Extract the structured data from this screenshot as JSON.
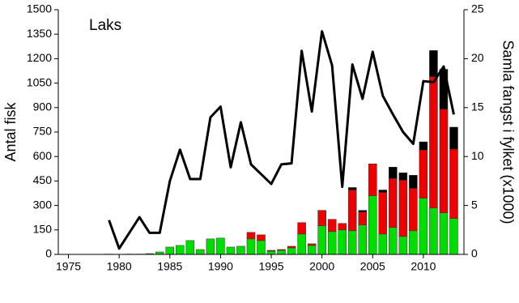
{
  "chart_data": {
    "type": "bar",
    "annotation": "Laks",
    "ylabel": "Antal fisk",
    "y2label": "Samla fangst i fylket (x1000)",
    "x": [
      1979,
      1980,
      1981,
      1982,
      1983,
      1984,
      1985,
      1986,
      1987,
      1988,
      1989,
      1990,
      1991,
      1992,
      1993,
      1994,
      1995,
      1996,
      1997,
      1998,
      1999,
      2000,
      2001,
      2002,
      2003,
      2004,
      2005,
      2006,
      2007,
      2008,
      2009,
      2010,
      2011,
      2012,
      2013
    ],
    "xlim": [
      1974,
      2014
    ],
    "xticks": [
      1975,
      1980,
      1985,
      1990,
      1995,
      2000,
      2005,
      2010
    ],
    "ylim": [
      0,
      1500
    ],
    "yticks": [
      0,
      150,
      300,
      450,
      600,
      750,
      900,
      1050,
      1200,
      1350,
      1500
    ],
    "y2lim": [
      0,
      25
    ],
    "y2ticks": [
      0,
      5,
      10,
      15,
      20,
      25
    ],
    "series": [
      {
        "color": "#00dd00",
        "stack": true,
        "values": [
          2,
          0,
          2,
          2,
          5,
          15,
          45,
          55,
          85,
          30,
          95,
          100,
          45,
          50,
          95,
          85,
          20,
          25,
          40,
          125,
          55,
          175,
          140,
          150,
          145,
          180,
          360,
          125,
          165,
          110,
          145,
          345,
          285,
          255,
          220
        ]
      },
      {
        "color": "#ee0000",
        "stack": true,
        "values": [
          0,
          0,
          0,
          0,
          0,
          0,
          0,
          0,
          0,
          0,
          0,
          0,
          0,
          0,
          40,
          35,
          5,
          5,
          10,
          70,
          10,
          95,
          75,
          40,
          250,
          80,
          195,
          255,
          300,
          345,
          260,
          295,
          805,
          635,
          425
        ]
      },
      {
        "color": "#000000",
        "stack": true,
        "values": [
          0,
          0,
          0,
          0,
          0,
          0,
          0,
          0,
          0,
          0,
          0,
          0,
          0,
          0,
          0,
          0,
          0,
          0,
          0,
          0,
          0,
          0,
          0,
          0,
          15,
          10,
          0,
          15,
          70,
          45,
          80,
          50,
          160,
          245,
          135
        ]
      },
      {
        "color": "#000000",
        "type": "line",
        "axis": "y2",
        "values": [
          3.5,
          0.6,
          2.2,
          3.8,
          2.2,
          2.2,
          7.5,
          10.7,
          7.7,
          7.7,
          14,
          15.1,
          8.9,
          13.5,
          9.2,
          8.2,
          7.2,
          9.2,
          9.3,
          20.8,
          14.6,
          22.8,
          19.3,
          6.9,
          19.4,
          15.9,
          20.7,
          16.2,
          14.3,
          12.5,
          11.3,
          17.7,
          17.6,
          19.2,
          14.3
        ]
      }
    ]
  }
}
